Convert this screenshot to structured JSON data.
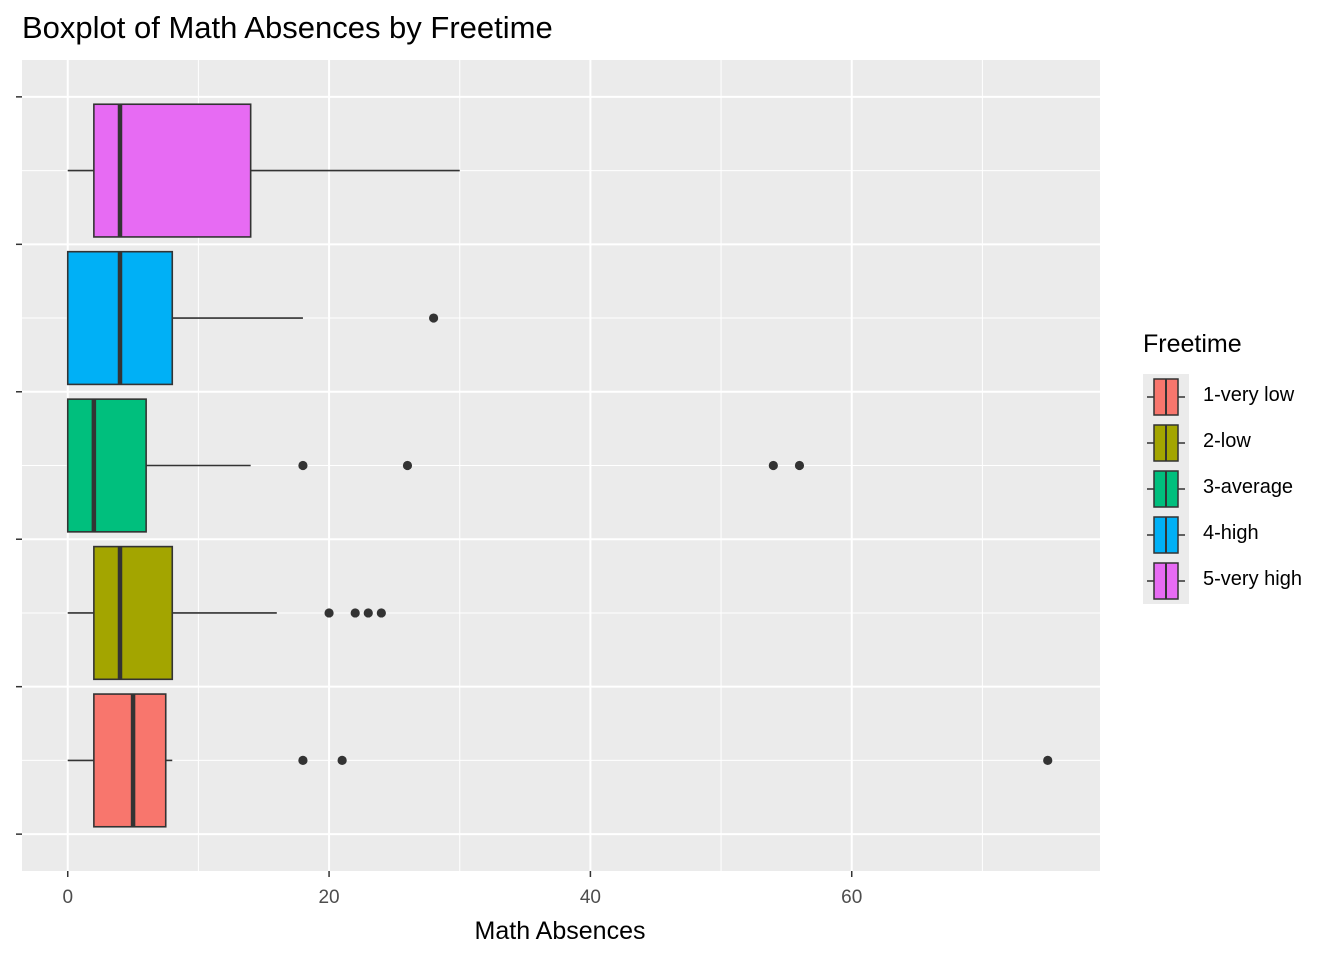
{
  "title": "Boxplot of Math Absences by Freetime",
  "chart_data": {
    "type": "boxplot",
    "orientation": "horizontal",
    "title": "Boxplot of Math Absences by Freetime",
    "xlabel": "Math Absences",
    "ylabel": "",
    "xlim": [
      -3.5,
      79
    ],
    "x_ticks": [
      0,
      20,
      40,
      60
    ],
    "x_tick_labels": [
      "0",
      "20",
      "40",
      "60"
    ],
    "background": "#ebebeb",
    "grid": true,
    "legend": {
      "title": "Freetime",
      "position": "right"
    },
    "series": [
      {
        "name": "1-very low",
        "color": "#F8766D",
        "q1": 2,
        "median": 5,
        "q3": 7.5,
        "whisker_low": 0,
        "whisker_high": 8,
        "outliers": [
          18,
          21,
          75
        ]
      },
      {
        "name": "2-low",
        "color": "#A3A500",
        "q1": 2,
        "median": 4,
        "q3": 8,
        "whisker_low": 0,
        "whisker_high": 16,
        "outliers": [
          20,
          22,
          23,
          24
        ]
      },
      {
        "name": "3-average",
        "color": "#00BF7D",
        "q1": 0,
        "median": 2,
        "q3": 6,
        "whisker_low": 0,
        "whisker_high": 14,
        "outliers": [
          18,
          26,
          54,
          56
        ]
      },
      {
        "name": "4-high",
        "color": "#00B0F6",
        "q1": 0,
        "median": 4,
        "q3": 8,
        "whisker_low": 0,
        "whisker_high": 18,
        "outliers": [
          28
        ]
      },
      {
        "name": "5-very high",
        "color": "#E76BF3",
        "q1": 2,
        "median": 4,
        "q3": 14,
        "whisker_low": 0,
        "whisker_high": 30,
        "outliers": []
      }
    ]
  }
}
